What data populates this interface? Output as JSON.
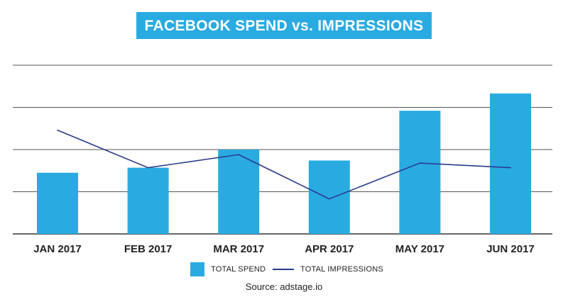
{
  "chart_data": {
    "type": "bar",
    "title": "FACEBOOK SPEND vs. IMPRESSIONS",
    "categories": [
      "JAN 2017",
      "FEB 2017",
      "MAR 2017",
      "APR 2017",
      "MAY 2017",
      "JUN 2017"
    ],
    "ylim": [
      0,
      4
    ],
    "grid": true,
    "legend_position": "bottom",
    "series": [
      {
        "name": "TOTAL SPEND",
        "type": "bar",
        "color": "#29abe2",
        "values": [
          1.45,
          1.57,
          2.0,
          1.74,
          2.92,
          3.33
        ]
      },
      {
        "name": "TOTAL IMPRESSIONS",
        "type": "line",
        "color": "#2b3a8c",
        "values": [
          2.46,
          1.57,
          1.88,
          0.83,
          1.68,
          1.57
        ]
      }
    ],
    "source": "Source: adstage.io"
  }
}
